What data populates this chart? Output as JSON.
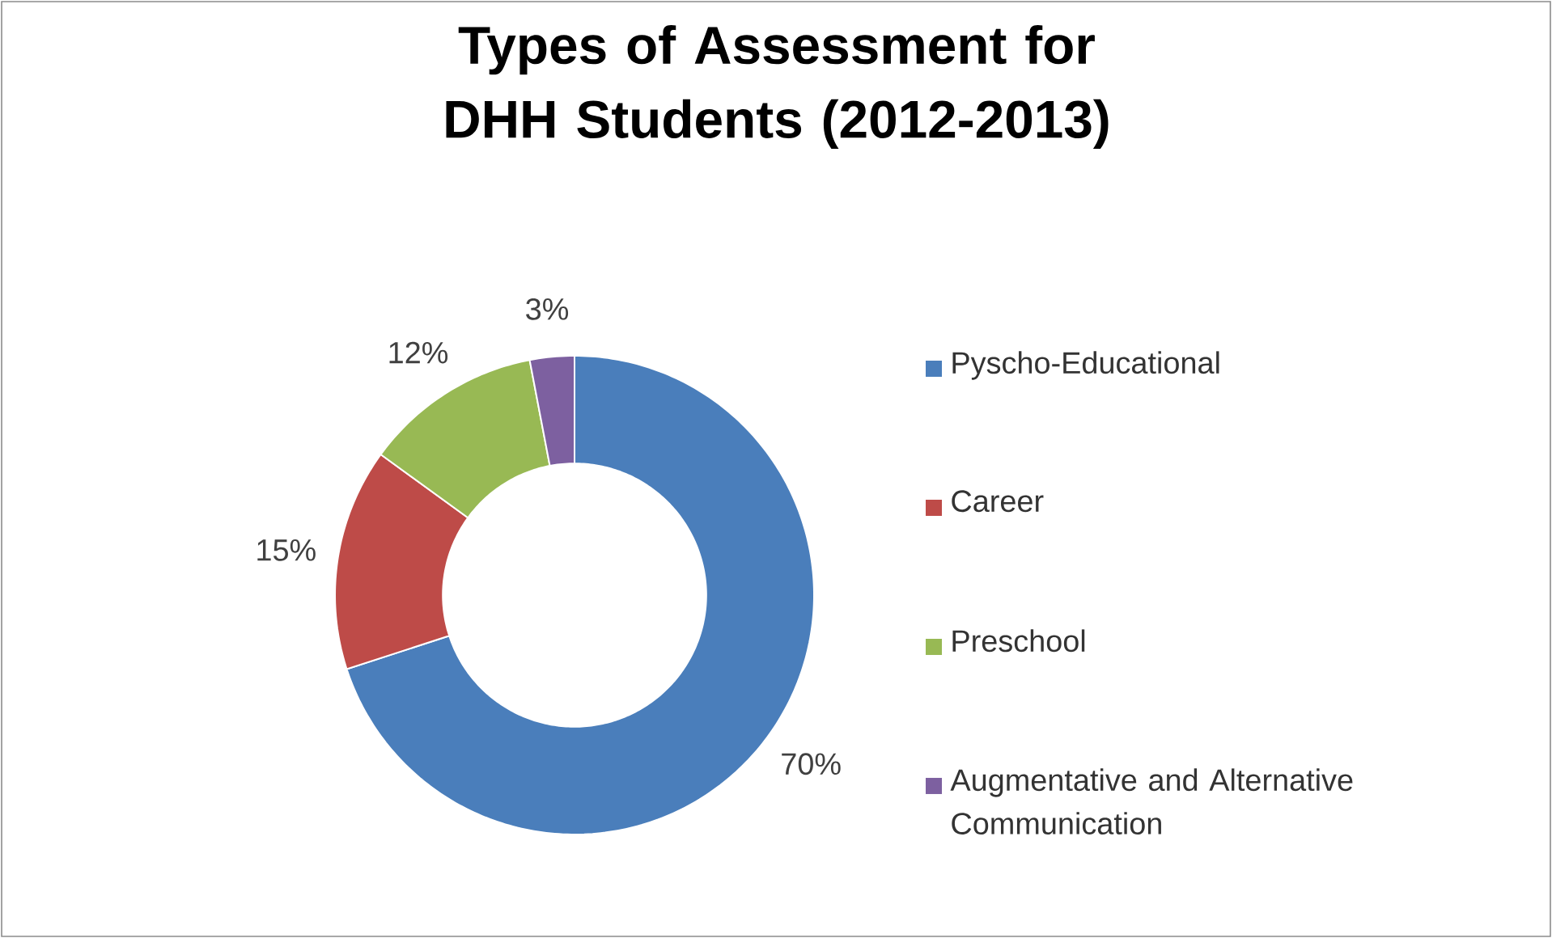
{
  "chart_data": {
    "type": "donut",
    "title": "Types of Assessment for DHH Students (2012-2013)",
    "categories": [
      "Pyscho-Educational",
      "Career",
      "Preschool",
      "Augmentative and Alternative Communication"
    ],
    "values": [
      70,
      15,
      12,
      3
    ],
    "colors": [
      "#4a7ebb",
      "#be4b48",
      "#98b954",
      "#7d60a0"
    ],
    "value_labels": [
      "70%",
      "15%",
      "12%",
      "3%"
    ],
    "legend": "right"
  }
}
